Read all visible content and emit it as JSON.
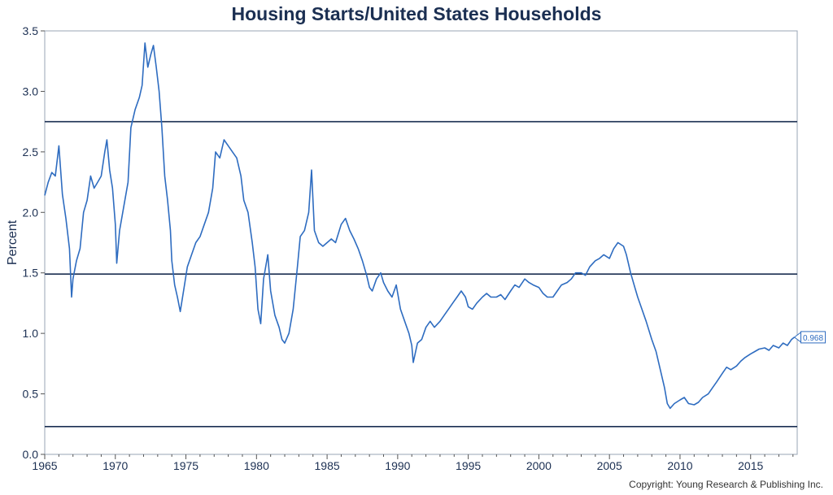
{
  "chart_data": {
    "type": "line",
    "title": "Housing Starts/United States Households",
    "xlabel": "",
    "ylabel": "Percent",
    "xlim": [
      1965,
      2018.3
    ],
    "ylim": [
      0,
      3.5
    ],
    "x_ticks": [
      "1965",
      "1970",
      "1975",
      "1980",
      "1985",
      "1990",
      "1995",
      "2000",
      "2005",
      "2010",
      "2015"
    ],
    "y_ticks": [
      "0.0",
      "0.5",
      "1.0",
      "1.5",
      "2.0",
      "2.5",
      "3.0",
      "3.5"
    ],
    "grid": false,
    "reference_lines": [
      2.75,
      1.49,
      0.23
    ],
    "last_value_label": "0.968",
    "series": [
      {
        "color": "#2e6cc0",
        "points": [
          [
            1965.0,
            2.14
          ],
          [
            1965.25,
            2.25
          ],
          [
            1965.5,
            2.33
          ],
          [
            1965.75,
            2.3
          ],
          [
            1966.0,
            2.55
          ],
          [
            1966.25,
            2.15
          ],
          [
            1966.5,
            1.95
          ],
          [
            1966.75,
            1.7
          ],
          [
            1966.9,
            1.3
          ],
          [
            1967.0,
            1.45
          ],
          [
            1967.25,
            1.6
          ],
          [
            1967.5,
            1.7
          ],
          [
            1967.75,
            2.0
          ],
          [
            1968.0,
            2.1
          ],
          [
            1968.25,
            2.3
          ],
          [
            1968.5,
            2.2
          ],
          [
            1968.75,
            2.25
          ],
          [
            1969.0,
            2.3
          ],
          [
            1969.25,
            2.5
          ],
          [
            1969.4,
            2.6
          ],
          [
            1969.6,
            2.35
          ],
          [
            1969.8,
            2.2
          ],
          [
            1970.0,
            1.9
          ],
          [
            1970.1,
            1.58
          ],
          [
            1970.3,
            1.85
          ],
          [
            1970.6,
            2.05
          ],
          [
            1970.9,
            2.25
          ],
          [
            1971.1,
            2.7
          ],
          [
            1971.4,
            2.85
          ],
          [
            1971.7,
            2.95
          ],
          [
            1971.9,
            3.05
          ],
          [
            1972.1,
            3.4
          ],
          [
            1972.3,
            3.2
          ],
          [
            1972.5,
            3.3
          ],
          [
            1972.7,
            3.38
          ],
          [
            1972.9,
            3.2
          ],
          [
            1973.1,
            3.0
          ],
          [
            1973.3,
            2.7
          ],
          [
            1973.5,
            2.3
          ],
          [
            1973.7,
            2.1
          ],
          [
            1973.9,
            1.85
          ],
          [
            1974.0,
            1.6
          ],
          [
            1974.2,
            1.4
          ],
          [
            1974.4,
            1.3
          ],
          [
            1974.6,
            1.18
          ],
          [
            1974.9,
            1.4
          ],
          [
            1975.1,
            1.55
          ],
          [
            1975.4,
            1.65
          ],
          [
            1975.7,
            1.75
          ],
          [
            1976.0,
            1.8
          ],
          [
            1976.3,
            1.9
          ],
          [
            1976.6,
            2.0
          ],
          [
            1976.9,
            2.2
          ],
          [
            1977.1,
            2.5
          ],
          [
            1977.4,
            2.45
          ],
          [
            1977.7,
            2.6
          ],
          [
            1978.0,
            2.55
          ],
          [
            1978.3,
            2.5
          ],
          [
            1978.6,
            2.45
          ],
          [
            1978.9,
            2.3
          ],
          [
            1979.1,
            2.1
          ],
          [
            1979.4,
            2.0
          ],
          [
            1979.7,
            1.75
          ],
          [
            1979.9,
            1.55
          ],
          [
            1980.1,
            1.2
          ],
          [
            1980.3,
            1.08
          ],
          [
            1980.5,
            1.45
          ],
          [
            1980.8,
            1.65
          ],
          [
            1981.0,
            1.35
          ],
          [
            1981.3,
            1.15
          ],
          [
            1981.6,
            1.05
          ],
          [
            1981.8,
            0.95
          ],
          [
            1982.0,
            0.92
          ],
          [
            1982.3,
            1.0
          ],
          [
            1982.6,
            1.2
          ],
          [
            1982.9,
            1.55
          ],
          [
            1983.1,
            1.8
          ],
          [
            1983.4,
            1.85
          ],
          [
            1983.7,
            2.0
          ],
          [
            1983.9,
            2.35
          ],
          [
            1984.1,
            1.85
          ],
          [
            1984.4,
            1.75
          ],
          [
            1984.7,
            1.72
          ],
          [
            1985.0,
            1.75
          ],
          [
            1985.3,
            1.78
          ],
          [
            1985.6,
            1.75
          ],
          [
            1986.0,
            1.9
          ],
          [
            1986.3,
            1.95
          ],
          [
            1986.6,
            1.85
          ],
          [
            1986.9,
            1.78
          ],
          [
            1987.2,
            1.7
          ],
          [
            1987.5,
            1.6
          ],
          [
            1987.8,
            1.48
          ],
          [
            1988.0,
            1.38
          ],
          [
            1988.2,
            1.35
          ],
          [
            1988.5,
            1.45
          ],
          [
            1988.8,
            1.5
          ],
          [
            1989.0,
            1.42
          ],
          [
            1989.3,
            1.35
          ],
          [
            1989.6,
            1.3
          ],
          [
            1989.9,
            1.4
          ],
          [
            1990.2,
            1.2
          ],
          [
            1990.5,
            1.1
          ],
          [
            1990.8,
            1.0
          ],
          [
            1991.0,
            0.9
          ],
          [
            1991.1,
            0.76
          ],
          [
            1991.4,
            0.92
          ],
          [
            1991.7,
            0.95
          ],
          [
            1992.0,
            1.05
          ],
          [
            1992.3,
            1.1
          ],
          [
            1992.6,
            1.05
          ],
          [
            1993.0,
            1.1
          ],
          [
            1993.3,
            1.15
          ],
          [
            1993.6,
            1.2
          ],
          [
            1993.9,
            1.25
          ],
          [
            1994.2,
            1.3
          ],
          [
            1994.5,
            1.35
          ],
          [
            1994.8,
            1.3
          ],
          [
            1995.0,
            1.22
          ],
          [
            1995.3,
            1.2
          ],
          [
            1995.6,
            1.25
          ],
          [
            1996.0,
            1.3
          ],
          [
            1996.3,
            1.33
          ],
          [
            1996.6,
            1.3
          ],
          [
            1997.0,
            1.3
          ],
          [
            1997.3,
            1.32
          ],
          [
            1997.6,
            1.28
          ],
          [
            1998.0,
            1.35
          ],
          [
            1998.3,
            1.4
          ],
          [
            1998.6,
            1.38
          ],
          [
            1999.0,
            1.45
          ],
          [
            1999.3,
            1.42
          ],
          [
            1999.6,
            1.4
          ],
          [
            2000.0,
            1.38
          ],
          [
            2000.3,
            1.33
          ],
          [
            2000.6,
            1.3
          ],
          [
            2001.0,
            1.3
          ],
          [
            2001.3,
            1.35
          ],
          [
            2001.6,
            1.4
          ],
          [
            2002.0,
            1.42
          ],
          [
            2002.3,
            1.45
          ],
          [
            2002.6,
            1.5
          ],
          [
            2003.0,
            1.5
          ],
          [
            2003.3,
            1.48
          ],
          [
            2003.6,
            1.55
          ],
          [
            2004.0,
            1.6
          ],
          [
            2004.3,
            1.62
          ],
          [
            2004.6,
            1.65
          ],
          [
            2005.0,
            1.62
          ],
          [
            2005.3,
            1.7
          ],
          [
            2005.6,
            1.75
          ],
          [
            2006.0,
            1.72
          ],
          [
            2006.2,
            1.65
          ],
          [
            2006.5,
            1.5
          ],
          [
            2006.8,
            1.38
          ],
          [
            2007.0,
            1.3
          ],
          [
            2007.3,
            1.2
          ],
          [
            2007.6,
            1.1
          ],
          [
            2008.0,
            0.95
          ],
          [
            2008.3,
            0.85
          ],
          [
            2008.6,
            0.7
          ],
          [
            2008.9,
            0.55
          ],
          [
            2009.1,
            0.42
          ],
          [
            2009.3,
            0.38
          ],
          [
            2009.6,
            0.42
          ],
          [
            2010.0,
            0.45
          ],
          [
            2010.3,
            0.47
          ],
          [
            2010.6,
            0.42
          ],
          [
            2011.0,
            0.41
          ],
          [
            2011.3,
            0.43
          ],
          [
            2011.6,
            0.47
          ],
          [
            2012.0,
            0.5
          ],
          [
            2012.3,
            0.55
          ],
          [
            2012.6,
            0.6
          ],
          [
            2013.0,
            0.67
          ],
          [
            2013.3,
            0.72
          ],
          [
            2013.6,
            0.7
          ],
          [
            2014.0,
            0.73
          ],
          [
            2014.3,
            0.77
          ],
          [
            2014.6,
            0.8
          ],
          [
            2015.0,
            0.83
          ],
          [
            2015.3,
            0.85
          ],
          [
            2015.6,
            0.87
          ],
          [
            2016.0,
            0.88
          ],
          [
            2016.3,
            0.86
          ],
          [
            2016.6,
            0.9
          ],
          [
            2017.0,
            0.88
          ],
          [
            2017.3,
            0.92
          ],
          [
            2017.6,
            0.9
          ],
          [
            2017.9,
            0.95
          ],
          [
            2018.1,
            0.968
          ]
        ]
      }
    ]
  },
  "copyright": "Copyright: Young Research & Publishing Inc."
}
